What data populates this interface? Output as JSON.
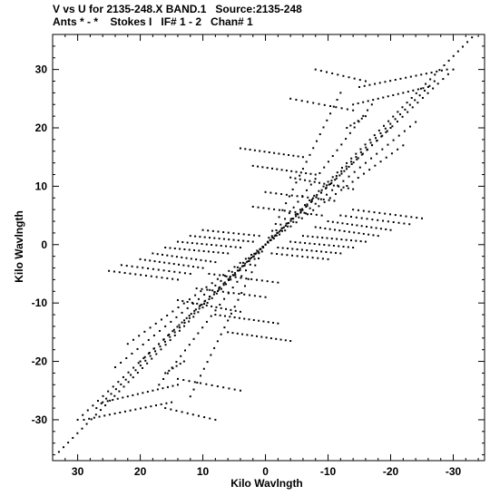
{
  "header": {
    "line1": "V vs U for 2135-248.X BAND.1   Source:2135-248",
    "line2": "Ants * - *    Stokes I   IF# 1 - 2   Chan# 1"
  },
  "chart_data": {
    "type": "scatter",
    "xlabel": "Kilo Wavlngth",
    "ylabel": "Kilo Wavlngth",
    "xlim": [
      34,
      -35
    ],
    "ylim": [
      -37,
      36
    ],
    "x_ticks": [
      30,
      20,
      10,
      0,
      -10,
      -20,
      -30
    ],
    "x_tick_labels": [
      "30",
      "20",
      "10",
      "0",
      "-10",
      "-20",
      "-30"
    ],
    "y_ticks": [
      30,
      20,
      10,
      0,
      -10,
      -20,
      -30
    ],
    "y_tick_labels": [
      "30",
      "20",
      "10",
      "0",
      "-10",
      "-20",
      "-30"
    ],
    "grid": false,
    "marker_color": "#000000",
    "tracks": [
      {
        "x1": 33,
        "y1": -35.5,
        "x2": -33,
        "y2": 35.5,
        "n": 90
      },
      {
        "x1": 30,
        "y1": -30,
        "x2": -30,
        "y2": 30,
        "n": 75
      },
      {
        "x1": 27,
        "y1": -28,
        "x2": -27,
        "y2": 28,
        "n": 70
      },
      {
        "x1": 20,
        "y1": -20,
        "x2": -20,
        "y2": 20,
        "n": 55
      },
      {
        "x1": 22,
        "y1": -17,
        "x2": -22,
        "y2": 17,
        "n": 50
      },
      {
        "x1": 17,
        "y1": -24,
        "x2": -17,
        "y2": 24,
        "n": 50
      },
      {
        "x1": 24,
        "y1": -21,
        "x2": -24,
        "y2": 21,
        "n": 55
      },
      {
        "x1": 12,
        "y1": -26,
        "x2": -12,
        "y2": 26,
        "n": 45
      },
      {
        "x1": 25,
        "y1": -4.5,
        "x2": 14,
        "y2": -6,
        "n": 14
      },
      {
        "x1": 23,
        "y1": -3.5,
        "x2": 12,
        "y2": -5,
        "n": 14
      },
      {
        "x1": 20,
        "y1": -2.5,
        "x2": 10,
        "y2": -4,
        "n": 14
      },
      {
        "x1": 18,
        "y1": -1.5,
        "x2": 8,
        "y2": -3,
        "n": 14
      },
      {
        "x1": 16,
        "y1": -0.5,
        "x2": 6,
        "y2": -1.5,
        "n": 14
      },
      {
        "x1": 14,
        "y1": 0.5,
        "x2": 4,
        "y2": -0.5,
        "n": 14
      },
      {
        "x1": 12,
        "y1": 1.5,
        "x2": 2,
        "y2": 0.5,
        "n": 14
      },
      {
        "x1": 10,
        "y1": 2.5,
        "x2": 1,
        "y2": 1.5,
        "n": 12
      },
      {
        "x1": -25,
        "y1": 4.5,
        "x2": -14,
        "y2": 6,
        "n": 14
      },
      {
        "x1": -23,
        "y1": 3.5,
        "x2": -12,
        "y2": 5,
        "n": 14
      },
      {
        "x1": -20,
        "y1": 2.5,
        "x2": -10,
        "y2": 4,
        "n": 14
      },
      {
        "x1": -18,
        "y1": 1.5,
        "x2": -8,
        "y2": 3,
        "n": 14
      },
      {
        "x1": -16,
        "y1": 0.5,
        "x2": -6,
        "y2": 1.5,
        "n": 14
      },
      {
        "x1": -14,
        "y1": -0.5,
        "x2": -4,
        "y2": 0.5,
        "n": 14
      },
      {
        "x1": -12,
        "y1": -1.5,
        "x2": -2,
        "y2": -0.5,
        "n": 14
      },
      {
        "x1": -10,
        "y1": -2.5,
        "x2": -1,
        "y2": -1.5,
        "n": 12
      },
      {
        "x1": 14,
        "y1": -9.5,
        "x2": 4,
        "y2": -11.5,
        "n": 14
      },
      {
        "x1": 11,
        "y1": -7.5,
        "x2": 0,
        "y2": -9,
        "n": 14
      },
      {
        "x1": 9,
        "y1": -5,
        "x2": -2,
        "y2": -6.5,
        "n": 14
      },
      {
        "x1": 6,
        "y1": -15,
        "x2": -4,
        "y2": -16.5,
        "n": 14
      },
      {
        "x1": 8,
        "y1": -12,
        "x2": -2,
        "y2": -13.5,
        "n": 14
      },
      {
        "x1": -14,
        "y1": 9.5,
        "x2": -4,
        "y2": 11.5,
        "n": 14
      },
      {
        "x1": -11,
        "y1": 7.5,
        "x2": 0,
        "y2": 9,
        "n": 14
      },
      {
        "x1": -9,
        "y1": 5,
        "x2": 2,
        "y2": 6.5,
        "n": 14
      },
      {
        "x1": -6,
        "y1": 15,
        "x2": 4,
        "y2": 16.5,
        "n": 14
      },
      {
        "x1": -8,
        "y1": 12,
        "x2": 2,
        "y2": 13.5,
        "n": 14
      },
      {
        "x1": 29,
        "y1": -30,
        "x2": 15,
        "y2": -27,
        "n": 18
      },
      {
        "x1": 26,
        "y1": -27,
        "x2": 14,
        "y2": -24,
        "n": 16
      },
      {
        "x1": 16,
        "y1": -28,
        "x2": 8,
        "y2": -30,
        "n": 10
      },
      {
        "x1": 14,
        "y1": -23,
        "x2": 4,
        "y2": -25,
        "n": 12
      },
      {
        "x1": 16,
        "y1": -22,
        "x2": 13,
        "y2": -20,
        "n": 6
      },
      {
        "x1": -29,
        "y1": 30,
        "x2": -15,
        "y2": 27,
        "n": 18
      },
      {
        "x1": -26,
        "y1": 27,
        "x2": -14,
        "y2": 24,
        "n": 16
      },
      {
        "x1": -16,
        "y1": 28,
        "x2": -8,
        "y2": 30,
        "n": 10
      },
      {
        "x1": -14,
        "y1": 23,
        "x2": -4,
        "y2": 25,
        "n": 12
      },
      {
        "x1": -16,
        "y1": 22,
        "x2": -13,
        "y2": 20,
        "n": 6
      }
    ]
  }
}
